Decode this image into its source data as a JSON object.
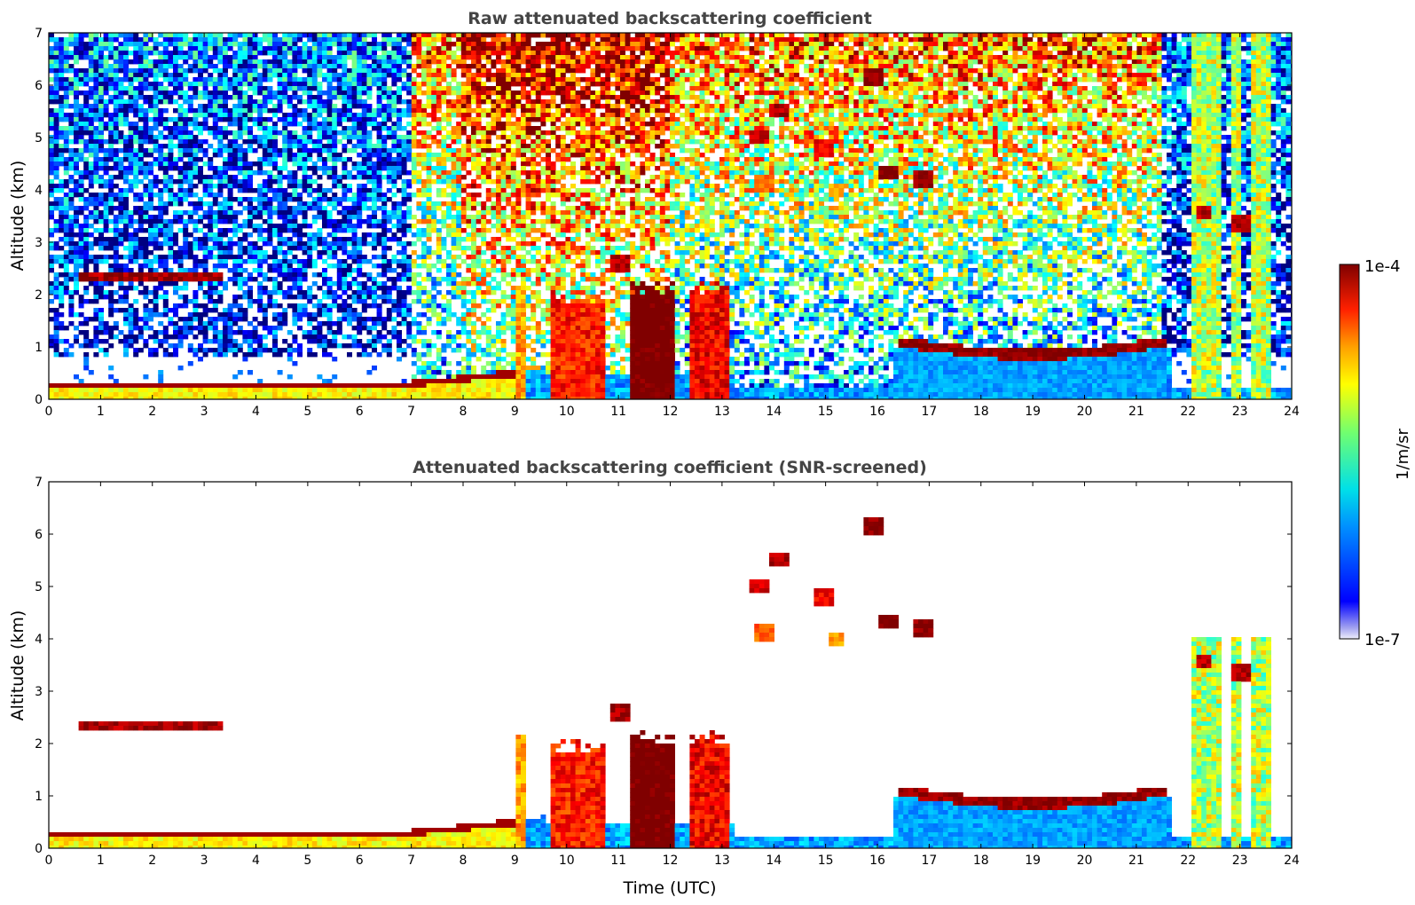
{
  "chart_data": [
    {
      "type": "heatmap",
      "title": "Raw attenuated backscattering coefficient",
      "xlabel": "",
      "ylabel": "Altitude (km)",
      "xlim": [
        0,
        24
      ],
      "ylim": [
        0,
        7
      ],
      "xticks": [
        "0",
        "1",
        "2",
        "3",
        "4",
        "5",
        "6",
        "7",
        "8",
        "9",
        "10",
        "11",
        "12",
        "13",
        "14",
        "15",
        "16",
        "17",
        "18",
        "19",
        "20",
        "21",
        "22",
        "23",
        "24"
      ],
      "yticks": [
        "0",
        "1",
        "2",
        "3",
        "4",
        "5",
        "6",
        "7"
      ],
      "screened": false,
      "features": [
        {
          "kind": "boundary_layer",
          "x": [
            0,
            6.5
          ],
          "top": 0.3,
          "value": "high"
        },
        {
          "kind": "cloud_layer",
          "x": [
            0.6,
            3.4
          ],
          "y": 2.35,
          "value": "high"
        },
        {
          "kind": "rising_layer",
          "x": [
            6.7,
            9.6
          ],
          "top": [
            0.3,
            0.6
          ],
          "value": "high"
        },
        {
          "kind": "convective_columns",
          "x": [
            9.0,
            13.2
          ],
          "top": 2.3,
          "value": "high"
        },
        {
          "kind": "elevated_aerosol_layer",
          "x": [
            16.4,
            21.6
          ],
          "y": 1.1,
          "value": "high"
        },
        {
          "kind": "clear_night_columns",
          "x": [
            21.7,
            23.8
          ],
          "top": 7.0,
          "value": "moderate"
        }
      ]
    },
    {
      "type": "heatmap",
      "title": "Attenuated backscattering coefficient (SNR-screened)",
      "xlabel": "Time (UTC)",
      "ylabel": "Altitude (km)",
      "xlim": [
        0,
        24
      ],
      "ylim": [
        0,
        7
      ],
      "xticks": [
        "0",
        "1",
        "2",
        "3",
        "4",
        "5",
        "6",
        "7",
        "8",
        "9",
        "10",
        "11",
        "12",
        "13",
        "14",
        "15",
        "16",
        "17",
        "18",
        "19",
        "20",
        "21",
        "22",
        "23",
        "24"
      ],
      "yticks": [
        "0",
        "1",
        "2",
        "3",
        "4",
        "5",
        "6",
        "7"
      ],
      "screened": true
    }
  ],
  "colorbar": {
    "label": "1/m/sr",
    "max_label": "1e-4",
    "min_label": "1e-7",
    "scale": "log",
    "range": [
      1e-07,
      0.0001
    ],
    "colormap": "jet"
  },
  "colors": {
    "low": "#0000ff",
    "mid": "#ffff00",
    "high": "#7f0000"
  }
}
